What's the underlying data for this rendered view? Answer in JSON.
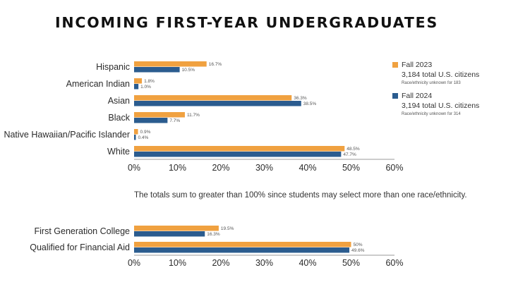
{
  "title": "INCOMING FIRST-YEAR UNDERGRADUATES",
  "note": "The totals sum to greater than 100% since students may select more than one race/ethnicity.",
  "colors": {
    "fall_2023": "#F0A140",
    "fall_2024": "#2B5C8F"
  },
  "legend": [
    {
      "name": "Fall 2023",
      "total": "3,184 total U.S. citizens",
      "unknown": "Race/ethnicity unknown for 183"
    },
    {
      "name": "Fall 2024",
      "total": "3,194 total U.S. citizens",
      "unknown": "Race/ethnicity unknown for 314"
    }
  ],
  "chart_data": [
    {
      "type": "bar",
      "orientation": "horizontal",
      "categories": [
        "Hispanic",
        "American Indian",
        "Asian",
        "Black",
        "Native Hawaiian/Pacific Islander",
        "White"
      ],
      "series": [
        {
          "name": "Fall 2023",
          "values": [
            16.7,
            1.8,
            36.3,
            11.7,
            0.9,
            48.5
          ],
          "labels": [
            "16.7%",
            "1.8%",
            "36.3%",
            "11.7%",
            "0.9%",
            "48.5%"
          ]
        },
        {
          "name": "Fall 2024",
          "values": [
            10.5,
            1.0,
            38.5,
            7.7,
            0.4,
            47.7
          ],
          "labels": [
            "10.5%",
            "1.0%",
            "38.5%",
            "7.7%",
            "0.4%",
            "47.7%"
          ]
        }
      ],
      "xlim": [
        0,
        60
      ],
      "ticks": [
        "0%",
        "10%",
        "20%",
        "30%",
        "40%",
        "50%",
        "60%"
      ],
      "grid": false,
      "legend_position": "right"
    },
    {
      "type": "bar",
      "orientation": "horizontal",
      "categories": [
        "First Generation College",
        "Qualified for Financial Aid"
      ],
      "series": [
        {
          "name": "Fall 2023",
          "values": [
            19.5,
            50.0
          ],
          "labels": [
            "19.5%",
            "50%"
          ]
        },
        {
          "name": "Fall 2024",
          "values": [
            16.3,
            49.6
          ],
          "labels": [
            "16.3%",
            "49.6%"
          ]
        }
      ],
      "xlim": [
        0,
        60
      ],
      "ticks": [
        "0%",
        "10%",
        "20%",
        "30%",
        "40%",
        "50%",
        "60%"
      ],
      "grid": false
    }
  ]
}
